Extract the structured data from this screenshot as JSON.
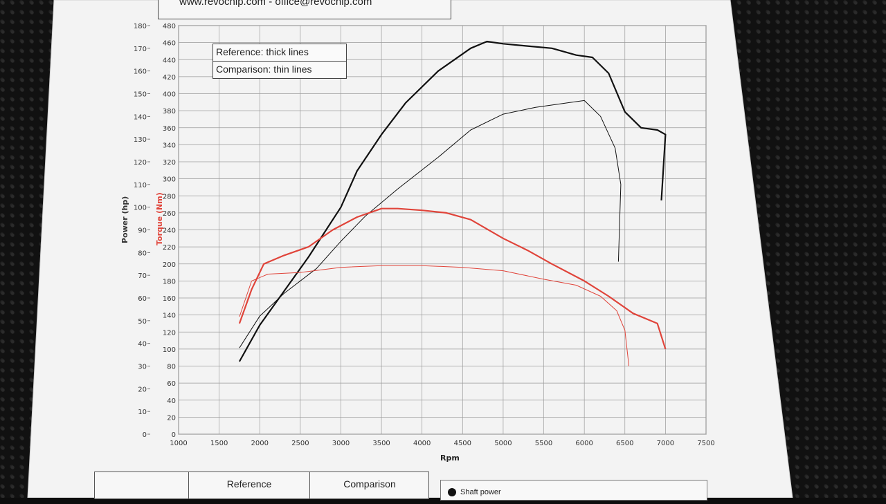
{
  "header": {
    "contact_text": "www.revochip.com - office@revochip.com"
  },
  "legend": {
    "reference_label": "Reference: thick lines",
    "comparison_label": "Comparison: thin lines"
  },
  "table": {
    "col1": "Reference",
    "col2": "Comparison"
  },
  "bottom_legend": {
    "shaft_power_label": "Shaft power"
  },
  "colors": {
    "power": "#111111",
    "torque": "#e0443a",
    "paper": "#f4f4f4",
    "grid": "#9a9a9a"
  },
  "chart_data": {
    "type": "line",
    "xlabel": "Rpm",
    "ylabel_power": "Power (hp)",
    "ylabel_torque": "Torque (Nm)",
    "xlim": [
      1000,
      7500
    ],
    "x_ticks": [
      "1000",
      "1500",
      "2000",
      "2500",
      "3000",
      "3500",
      "4000",
      "4500",
      "5000",
      "5500",
      "6000",
      "6500",
      "7000",
      "7500"
    ],
    "power_ticks": [
      "0",
      "10",
      "20",
      "30",
      "40",
      "50",
      "60",
      "70",
      "80",
      "90",
      "100",
      "110",
      "120",
      "130",
      "140",
      "150",
      "160",
      "170",
      "180"
    ],
    "torque_ticks": [
      "0",
      "20",
      "40",
      "60",
      "80",
      "100",
      "120",
      "140",
      "160",
      "180",
      "200",
      "220",
      "240",
      "260",
      "280",
      "300",
      "320",
      "340",
      "360",
      "380",
      "400",
      "420",
      "440",
      "460",
      "480"
    ],
    "power_range": [
      0,
      180
    ],
    "torque_range": [
      0,
      480
    ],
    "grid": true,
    "series": [
      {
        "name": "Reference: thick lines",
        "kind": "power",
        "x": [
          1750,
          2000,
          2300,
          2600,
          3000,
          3200,
          3500,
          3800,
          4200,
          4600,
          4800,
          5000,
          5300,
          5600,
          5900,
          6100,
          6300,
          6500,
          6700,
          6900,
          7000,
          6950
        ],
        "y": [
          32,
          48,
          63,
          78,
          100,
          116,
          132,
          146,
          160,
          170,
          173,
          172,
          171,
          170,
          167,
          166,
          159,
          142,
          135,
          134,
          132,
          103
        ]
      },
      {
        "name": "Comparison: thin lines",
        "kind": "power",
        "x": [
          1750,
          2000,
          2300,
          2700,
          3000,
          3300,
          3700,
          4200,
          4600,
          5000,
          5400,
          5800,
          6000,
          6200,
          6380,
          6450,
          6420
        ],
        "y": [
          38,
          52,
          62,
          73,
          85,
          96,
          108,
          122,
          134,
          141,
          144,
          146,
          147,
          140,
          126,
          110,
          76
        ]
      },
      {
        "name": "Reference: thick lines",
        "kind": "torque",
        "x": [
          1750,
          1900,
          2050,
          2300,
          2600,
          2900,
          3200,
          3500,
          3700,
          4000,
          4300,
          4600,
          5000,
          5300,
          5600,
          6000,
          6300,
          6600,
          6900,
          7000
        ],
        "y": [
          130,
          170,
          200,
          210,
          220,
          240,
          255,
          265,
          265,
          263,
          260,
          252,
          230,
          216,
          200,
          180,
          162,
          142,
          130,
          100
        ]
      },
      {
        "name": "Comparison: thin lines",
        "kind": "torque",
        "x": [
          1750,
          1900,
          2100,
          2500,
          3000,
          3500,
          4000,
          4500,
          5000,
          5500,
          5900,
          6200,
          6400,
          6500,
          6550
        ],
        "y": [
          138,
          180,
          188,
          190,
          196,
          198,
          198,
          196,
          192,
          182,
          175,
          162,
          145,
          122,
          80
        ]
      }
    ]
  }
}
